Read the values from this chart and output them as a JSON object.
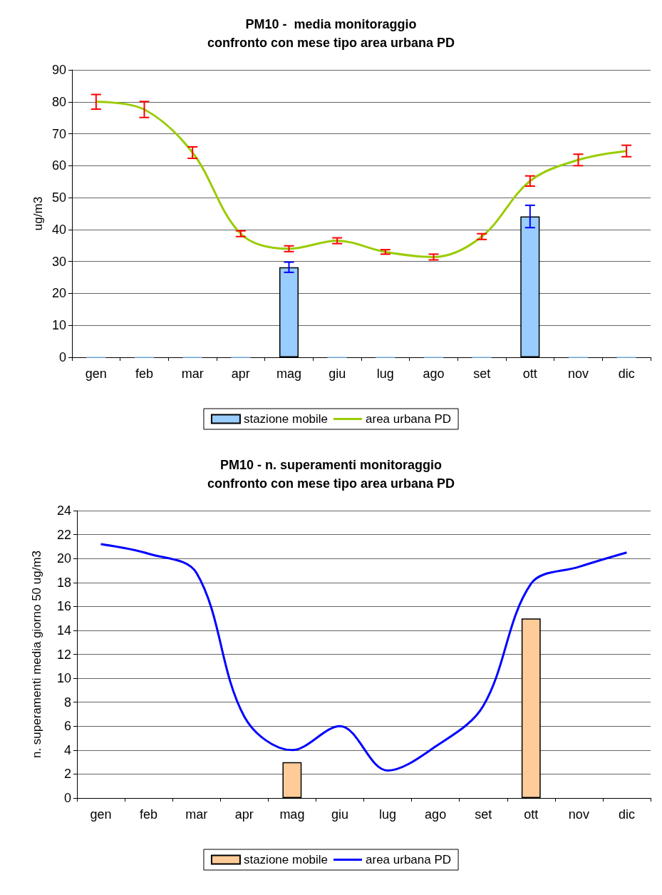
{
  "chart_data": [
    {
      "type": "bar",
      "title": "PM10 -  media monitoraggio\nconfronto con mese tipo area urbana PD",
      "ylabel": "ug/m3",
      "categories": [
        "gen",
        "feb",
        "mar",
        "apr",
        "mag",
        "giu",
        "lug",
        "ago",
        "set",
        "ott",
        "nov",
        "dic"
      ],
      "series": [
        {
          "name": "stazione mobile",
          "color": "#99ccff",
          "values": [
            0,
            0,
            0,
            0,
            28.2,
            0,
            0,
            0,
            0,
            44.1,
            0,
            0
          ],
          "errors": [
            null,
            null,
            null,
            null,
            1.6,
            null,
            null,
            null,
            null,
            3.5,
            null,
            null
          ]
        },
        {
          "name": "area urbana PD",
          "type": "line",
          "color": "#99cc00",
          "values": [
            80,
            77.6,
            64.1,
            38.7,
            34,
            36.5,
            33,
            31.4,
            37.8,
            55.2,
            61.8,
            64.6
          ],
          "errors": [
            2.3,
            2.5,
            1.8,
            0.9,
            0.9,
            0.9,
            0.7,
            0.9,
            0.9,
            1.6,
            1.8,
            1.8
          ]
        }
      ],
      "ylim": [
        0,
        90
      ],
      "yticks": [
        0,
        10,
        20,
        30,
        40,
        50,
        60,
        70,
        80,
        90
      ],
      "grid": "y",
      "legend": "bottom",
      "marker": "none"
    },
    {
      "type": "bar",
      "title": "PM10 - n. superamenti monitoraggio\nconfronto con mese tipo area urbana PD",
      "ylabel": "n. superamenti media giorno 50 ug/m3",
      "categories": [
        "gen",
        "feb",
        "mar",
        "apr",
        "mag",
        "giu",
        "lug",
        "ago",
        "set",
        "ott",
        "nov",
        "dic"
      ],
      "series": [
        {
          "name": "stazione mobile",
          "color": "#ffcc99",
          "values": [
            null,
            null,
            null,
            null,
            3,
            null,
            null,
            null,
            null,
            15,
            null,
            null
          ]
        },
        {
          "name": "area urbana PD",
          "type": "line",
          "color": "#0000ff",
          "values": [
            21.2,
            20.4,
            18.8,
            6.8,
            4,
            6,
            2.3,
            4.3,
            7.7,
            17.9,
            19.3,
            20.5
          ]
        }
      ],
      "ylim": [
        0,
        24
      ],
      "yticks": [
        0,
        2,
        4,
        6,
        8,
        10,
        12,
        14,
        16,
        18,
        20,
        22,
        24
      ],
      "grid": "y",
      "legend": "bottom",
      "marker": "none"
    }
  ]
}
